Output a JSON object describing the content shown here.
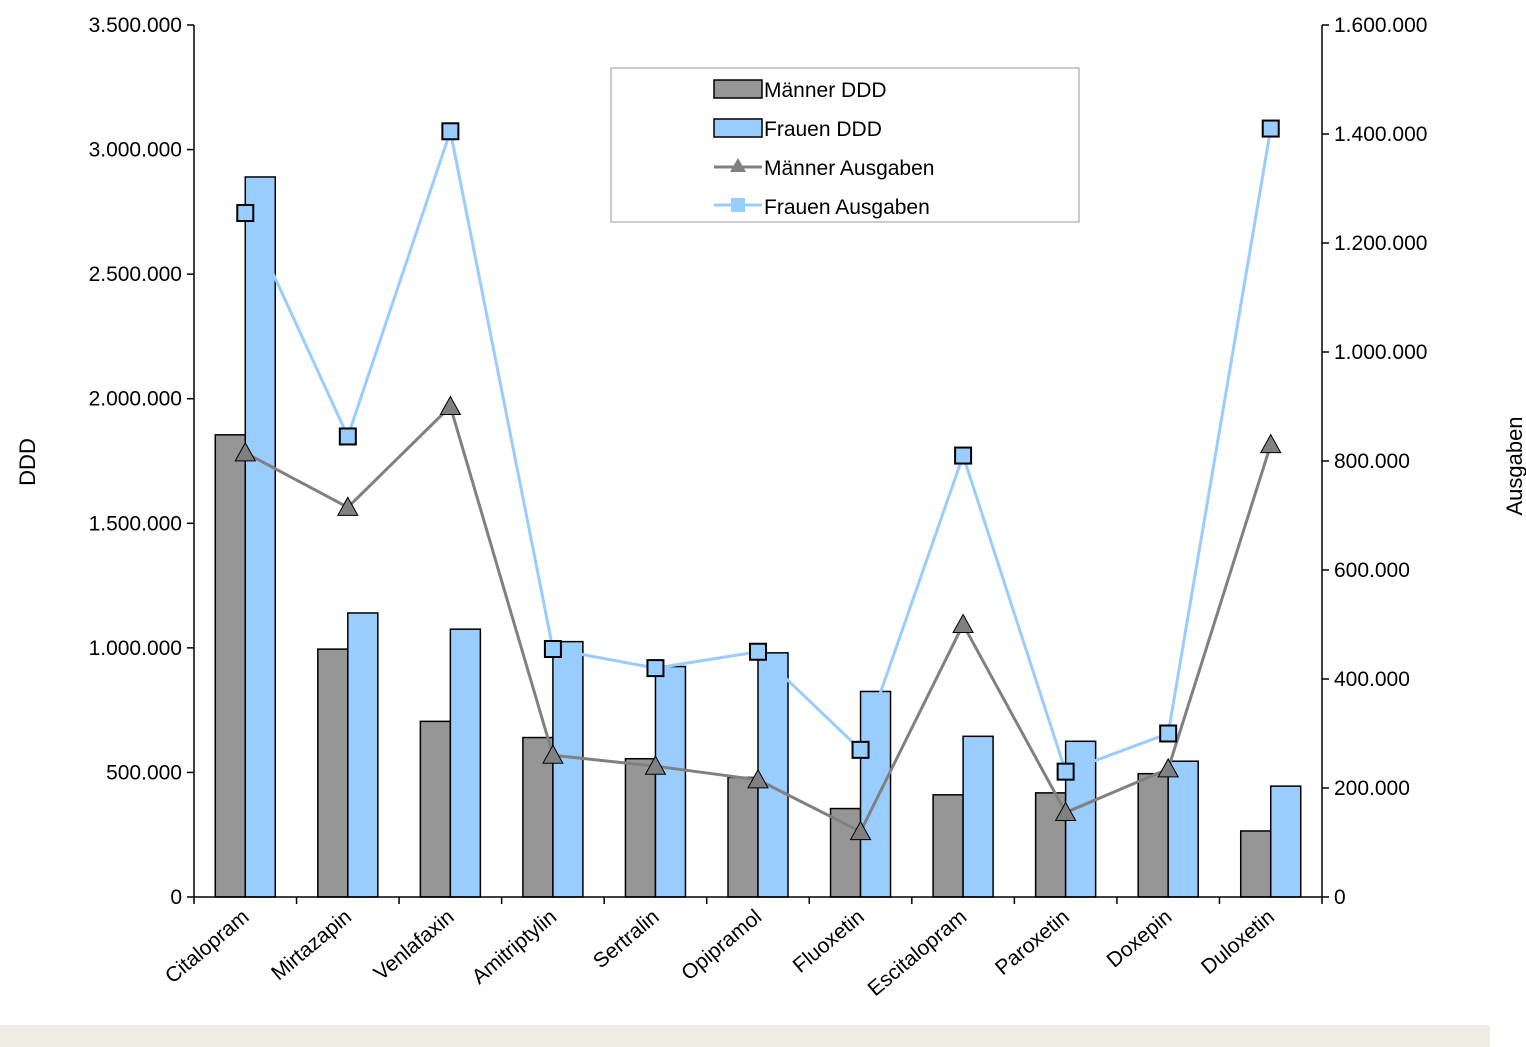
{
  "chart_data": {
    "type": "bar",
    "categories": [
      "Citalopram",
      "Mirtazapin",
      "Venlafaxin",
      "Amitriptylin",
      "Sertralin",
      "Opipramol",
      "Fluoxetin",
      "Escitalopram",
      "Paroxetin",
      "Doxepin",
      "Duloxetin"
    ],
    "series": [
      {
        "name": "Männer DDD",
        "type": "bar",
        "axis": "left",
        "color": "#969696",
        "values": [
          1855000,
          995000,
          705000,
          640000,
          555000,
          480000,
          355000,
          410000,
          418000,
          495000,
          265000
        ]
      },
      {
        "name": "Frauen DDD",
        "type": "bar",
        "axis": "left",
        "color": "#99ccff",
        "values": [
          2890000,
          1140000,
          1075000,
          1025000,
          925000,
          980000,
          825000,
          645000,
          625000,
          545000,
          445000
        ]
      },
      {
        "name": "Männer Ausgaben",
        "type": "line",
        "axis": "right",
        "color": "#808080",
        "marker": "triangle",
        "values": [
          815000,
          715000,
          900000,
          260000,
          240000,
          215000,
          120000,
          500000,
          155000,
          235000,
          830000
        ]
      },
      {
        "name": "Frauen Ausgaben",
        "type": "line",
        "axis": "right",
        "color": "#99ccff",
        "marker": "square",
        "values": [
          1255000,
          845000,
          1405000,
          455000,
          420000,
          450000,
          270000,
          810000,
          230000,
          300000,
          1410000
        ]
      }
    ],
    "ylabel": "DDD",
    "y2label": "Ausgaben",
    "ylim": [
      0,
      3500000
    ],
    "y2lim": [
      0,
      1600000
    ],
    "yticks": [
      "0",
      "500.000",
      "1.000.000",
      "1.500.000",
      "2.000.000",
      "2.500.000",
      "3.000.000",
      "3.500.000"
    ],
    "y2ticks": [
      "0",
      "200.000",
      "400.000",
      "600.000",
      "800.000",
      "1.000.000",
      "1.200.000",
      "1.400.000",
      "1.600.000"
    ],
    "grid": false,
    "legend_position": "top-center"
  }
}
